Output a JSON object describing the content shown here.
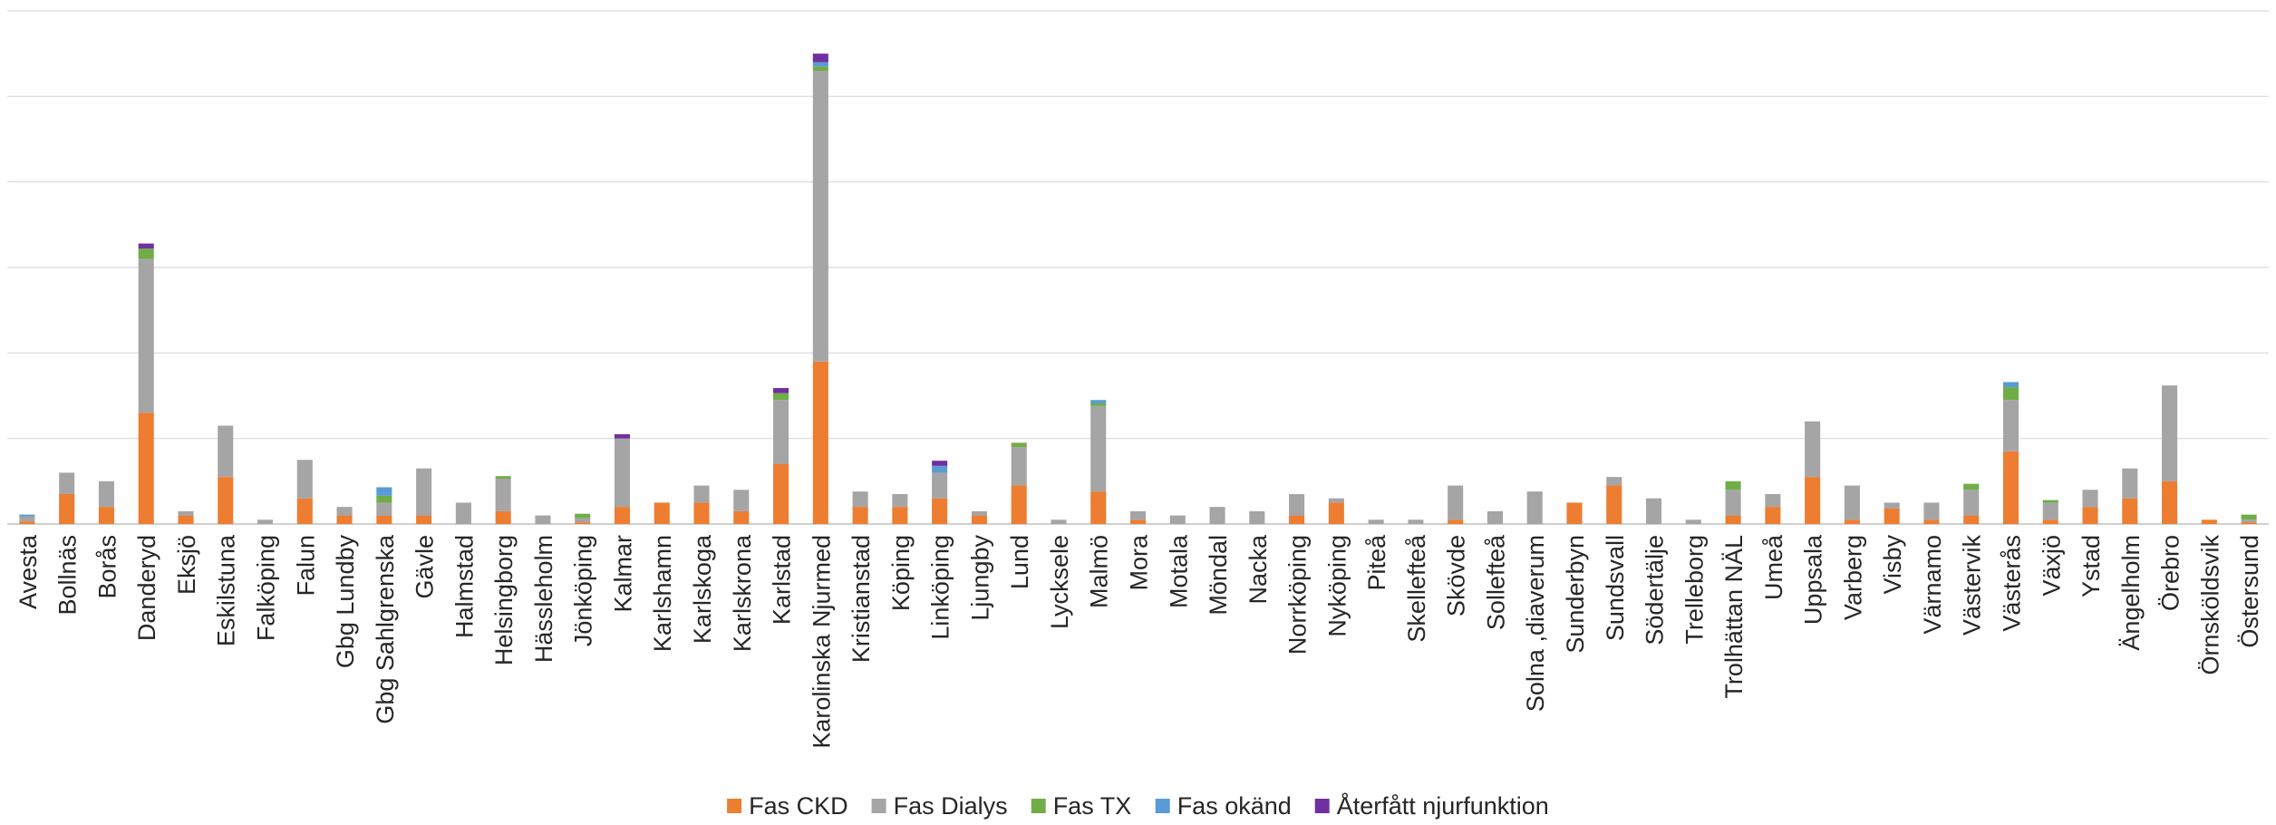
{
  "chart_data": {
    "type": "bar",
    "stacked": true,
    "grid": true,
    "legend_position": "bottom",
    "ylim": [
      0,
      600
    ],
    "yticks": [
      0,
      100,
      200,
      300,
      400,
      500,
      600
    ],
    "categories": [
      "Avesta",
      "Bollnäs",
      "Borås",
      "Danderyd",
      "Eksjö",
      "Eskilstuna",
      "Falköping",
      "Falun",
      "Gbg Lundby",
      "Gbg Sahlgrenska",
      "Gävle",
      "Halmstad",
      "Helsingborg",
      "Hässleholm",
      "Jönköping",
      "Kalmar",
      "Karlshamn",
      "Karlskoga",
      "Karlskrona",
      "Karlstad",
      "Karolinska Njurmed",
      "Kristianstad",
      "Köping",
      "Linköping",
      "Ljungby",
      "Lund",
      "Lycksele",
      "Malmö",
      "Mora",
      "Motala",
      "Möndal",
      "Nacka",
      "Norrköping",
      "Nyköping",
      "Piteå",
      "Skellefteå",
      "Skövde",
      "Sollefteå",
      "Solna ,diaverum",
      "Sunderbyn",
      "Sundsvall",
      "Södertälje",
      "Trelleborg",
      "Trolhättan NÄL",
      "Umeå",
      "Uppsala",
      "Varberg",
      "Visby",
      "Värnamo",
      "Västervik",
      "Västerås",
      "Växjö",
      "Ystad",
      "Ängelholm",
      "Örebro",
      "Örnsköldsvik",
      "Östersund"
    ],
    "series": [
      {
        "name": "Fas CKD",
        "color": "#ED7D31",
        "values": [
          3,
          35,
          20,
          130,
          10,
          55,
          0,
          30,
          10,
          10,
          10,
          0,
          15,
          0,
          2,
          20,
          25,
          25,
          15,
          70,
          190,
          20,
          20,
          30,
          10,
          45,
          0,
          38,
          5,
          0,
          0,
          0,
          10,
          25,
          0,
          0,
          5,
          0,
          0,
          25,
          45,
          0,
          0,
          10,
          20,
          55,
          5,
          18,
          5,
          10,
          85,
          5,
          20,
          30,
          50,
          5,
          2
        ]
      },
      {
        "name": "Fas Dialys",
        "color": "#A5A5A5",
        "values": [
          6,
          25,
          30,
          180,
          5,
          60,
          5,
          45,
          10,
          15,
          55,
          25,
          38,
          10,
          5,
          80,
          0,
          20,
          25,
          75,
          340,
          18,
          15,
          30,
          5,
          45,
          5,
          100,
          10,
          10,
          20,
          15,
          25,
          5,
          5,
          5,
          40,
          15,
          38,
          0,
          10,
          30,
          5,
          30,
          15,
          65,
          40,
          7,
          20,
          30,
          60,
          20,
          20,
          35,
          112,
          0,
          3
        ]
      },
      {
        "name": "Fas TX",
        "color": "#70AD47",
        "values": [
          0,
          0,
          0,
          12,
          0,
          0,
          0,
          0,
          0,
          8,
          0,
          0,
          3,
          0,
          5,
          0,
          0,
          0,
          0,
          8,
          5,
          0,
          0,
          0,
          0,
          5,
          0,
          3,
          0,
          0,
          0,
          0,
          0,
          0,
          0,
          0,
          0,
          0,
          0,
          0,
          0,
          0,
          0,
          10,
          0,
          0,
          0,
          0,
          0,
          7,
          15,
          3,
          0,
          0,
          0,
          0,
          6
        ]
      },
      {
        "name": "Fas okänd",
        "color": "#5B9BD5",
        "values": [
          2,
          0,
          0,
          0,
          0,
          0,
          0,
          0,
          0,
          10,
          0,
          0,
          0,
          0,
          0,
          0,
          0,
          0,
          0,
          0,
          5,
          0,
          0,
          8,
          0,
          0,
          0,
          4,
          0,
          0,
          0,
          0,
          0,
          0,
          0,
          0,
          0,
          0,
          0,
          0,
          0,
          0,
          0,
          0,
          0,
          0,
          0,
          0,
          0,
          0,
          6,
          0,
          0,
          0,
          0,
          0,
          0
        ]
      },
      {
        "name": "Återfått njurfunktion",
        "color": "#7030A0",
        "values": [
          0,
          0,
          0,
          6,
          0,
          0,
          0,
          0,
          0,
          0,
          0,
          0,
          0,
          0,
          0,
          5,
          0,
          0,
          0,
          6,
          10,
          0,
          0,
          6,
          0,
          0,
          0,
          0,
          0,
          0,
          0,
          0,
          0,
          0,
          0,
          0,
          0,
          0,
          0,
          0,
          0,
          0,
          0,
          0,
          0,
          0,
          0,
          0,
          0,
          0,
          0,
          0,
          0,
          0,
          0,
          0,
          0
        ]
      }
    ],
    "title": "",
    "xlabel": "",
    "ylabel": ""
  }
}
